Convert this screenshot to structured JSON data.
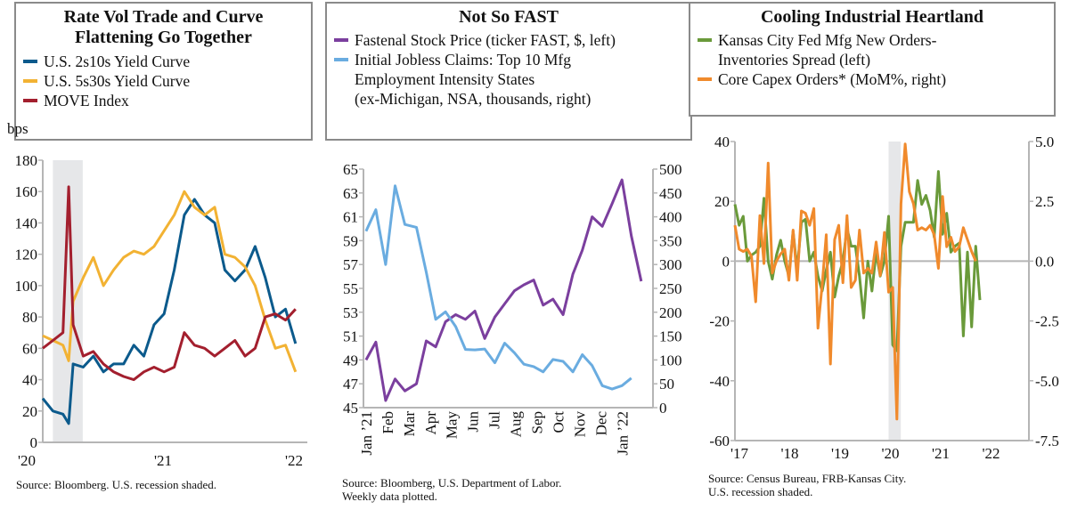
{
  "charts_text": [
    {
      "title_line1": "Rate Vol Trade and Curve",
      "title_line2": "Flattening Go Together",
      "unit": "bps",
      "source": "Source: Bloomberg. U.S. recession shaded."
    },
    {
      "title_line1": "Not So FAST",
      "source_line1": "Source: Bloomberg, U.S. Department of Labor.",
      "source_line2": "Weekly data plotted."
    },
    {
      "title_line1": "Cooling Industrial Heartland",
      "source_line1": "Source: Census Bureau, FRB-Kansas City.",
      "source_line2": "U.S. recession shaded."
    }
  ],
  "chart_data": [
    {
      "type": "line",
      "title": "Rate Vol Trade and Curve Flattening Go Together",
      "ylabel": "bps",
      "ylim": [
        0,
        180
      ],
      "yticks": [
        0,
        20,
        40,
        60,
        80,
        100,
        120,
        140,
        160,
        180
      ],
      "xticks": [
        "'20",
        "'21",
        "'22"
      ],
      "shaded": {
        "label": "U.S. recession",
        "from": "2020-02-01",
        "to": "2020-04-30",
        "color": "#e6e7e9"
      },
      "legend": "top-left",
      "grid": false,
      "x": [
        "2020-01-01",
        "2020-02-01",
        "2020-03-01",
        "2020-03-18",
        "2020-04-01",
        "2020-05-01",
        "2020-06-01",
        "2020-07-01",
        "2020-08-01",
        "2020-09-01",
        "2020-10-01",
        "2020-11-01",
        "2020-12-01",
        "2021-01-01",
        "2021-02-01",
        "2021-03-01",
        "2021-04-01",
        "2021-05-01",
        "2021-06-01",
        "2021-07-01",
        "2021-08-01",
        "2021-09-01",
        "2021-10-01",
        "2021-11-01",
        "2021-12-01",
        "2022-01-01",
        "2022-02-01"
      ],
      "series": [
        {
          "name": "U.S. 2s10s Yield Curve",
          "color": "#0b5a8c",
          "values": [
            28,
            20,
            18,
            12,
            50,
            48,
            55,
            45,
            50,
            50,
            62,
            55,
            75,
            82,
            110,
            145,
            155,
            145,
            140,
            110,
            103,
            110,
            125,
            105,
            80,
            85,
            63
          ]
        },
        {
          "name": "U.S. 5s30s Yield Curve",
          "color": "#f2b233",
          "values": [
            68,
            65,
            62,
            52,
            90,
            105,
            118,
            100,
            110,
            118,
            122,
            120,
            125,
            135,
            145,
            160,
            150,
            145,
            150,
            120,
            118,
            112,
            100,
            78,
            60,
            62,
            45
          ]
        },
        {
          "name": "MOVE Index",
          "color": "#a31f2e",
          "values": [
            60,
            65,
            70,
            163,
            75,
            55,
            58,
            50,
            45,
            42,
            40,
            45,
            48,
            45,
            48,
            70,
            62,
            60,
            55,
            60,
            65,
            55,
            60,
            80,
            82,
            78,
            85
          ]
        }
      ]
    },
    {
      "type": "line",
      "title": "Not So FAST",
      "ylim": [
        45,
        65
      ],
      "yticks": [
        45,
        47,
        49,
        51,
        53,
        55,
        57,
        59,
        61,
        63,
        65
      ],
      "y2lim": [
        0,
        500
      ],
      "y2ticks": [
        0,
        50,
        100,
        150,
        200,
        250,
        300,
        350,
        400,
        450,
        500
      ],
      "xticks": [
        [
          "2021-01-01",
          "Jan ’21"
        ],
        [
          "2021-02-01",
          "Feb"
        ],
        [
          "2021-03-01",
          "Mar"
        ],
        [
          "2021-04-01",
          "Apr"
        ],
        [
          "2021-05-01",
          "May"
        ],
        [
          "2021-06-01",
          "Jun"
        ],
        [
          "2021-07-01",
          "Jul"
        ],
        [
          "2021-08-01",
          "Aug"
        ],
        [
          "2021-09-01",
          "Sep"
        ],
        [
          "2021-10-01",
          "Oct"
        ],
        [
          "2021-11-01",
          "Nov"
        ],
        [
          "2021-12-01",
          "Dec"
        ],
        [
          "2022-01-01",
          "Jan ’22"
        ]
      ],
      "legend": "top",
      "grid": false,
      "x": [
        "2021-01-01",
        "2021-01-15",
        "2021-01-29",
        "2021-02-12",
        "2021-02-26",
        "2021-03-12",
        "2021-03-26",
        "2021-04-09",
        "2021-04-23",
        "2021-05-07",
        "2021-05-21",
        "2021-06-04",
        "2021-06-18",
        "2021-07-02",
        "2021-07-16",
        "2021-07-30",
        "2021-08-13",
        "2021-08-27",
        "2021-09-10",
        "2021-09-24",
        "2021-10-08",
        "2021-10-22",
        "2021-11-05",
        "2021-11-19",
        "2021-12-03",
        "2021-12-17",
        "2021-12-31",
        "2022-01-14",
        "2022-01-28"
      ],
      "series": [
        {
          "name": "Fastenal Stock Price (ticker FAST, $, left)",
          "legend_lines": [
            "Fastenal Stock Price (ticker FAST, $, left)"
          ],
          "axis": "left",
          "color": "#7b3f9e",
          "values": [
            49.0,
            50.5,
            45.6,
            47.4,
            46.4,
            47.0,
            50.6,
            50.1,
            52.2,
            52.8,
            52.4,
            53.1,
            50.8,
            52.6,
            53.7,
            54.8,
            55.3,
            55.7,
            53.6,
            54.1,
            52.8,
            56.2,
            58.2,
            61.0,
            60.2,
            62.1,
            64.1,
            59.4,
            55.6
          ]
        },
        {
          "name": "Initial Jobless Claims: Top 10 Mfg Employment Intensity States (ex-Michigan, NSA, thousands, right)",
          "legend_lines": [
            "Initial Jobless Claims: Top 10 Mfg",
            "Employment Intensity States",
            "(ex-Michigan, NSA, thousands, right)"
          ],
          "axis": "right",
          "color": "#6aace0",
          "values": [
            370,
            415,
            300,
            465,
            384,
            378,
            284,
            185,
            201,
            170,
            122,
            121,
            123,
            94,
            135,
            115,
            91,
            86,
            75,
            101,
            97,
            75,
            111,
            88,
            46,
            39,
            46,
            62,
            null
          ]
        }
      ]
    },
    {
      "type": "line",
      "title": "Cooling Industrial Heartland",
      "ylim": [
        -60,
        40
      ],
      "yticks": [
        -60,
        -40,
        -20,
        0,
        20,
        40
      ],
      "y2lim": [
        -7.5,
        5.0
      ],
      "y2ticks": [
        "-7.5",
        "-5.0",
        "-2.5",
        "0.0",
        "2.5",
        "5.0"
      ],
      "xticks": [
        "'17",
        "'18",
        "'19",
        "'20",
        "'21",
        "'22"
      ],
      "shaded": {
        "label": "U.S. recession",
        "from": "2020-02-01",
        "to": "2020-04-30",
        "color": "#e6e7e9"
      },
      "legend": "top",
      "grid": false,
      "x": [
        "2017-01",
        "2017-02",
        "2017-03",
        "2017-04",
        "2017-05",
        "2017-06",
        "2017-07",
        "2017-08",
        "2017-09",
        "2017-10",
        "2017-11",
        "2017-12",
        "2018-01",
        "2018-02",
        "2018-03",
        "2018-04",
        "2018-05",
        "2018-06",
        "2018-07",
        "2018-08",
        "2018-09",
        "2018-10",
        "2018-11",
        "2018-12",
        "2019-01",
        "2019-02",
        "2019-03",
        "2019-04",
        "2019-05",
        "2019-06",
        "2019-07",
        "2019-08",
        "2019-09",
        "2019-10",
        "2019-11",
        "2019-12",
        "2020-01",
        "2020-02",
        "2020-03",
        "2020-04",
        "2020-05",
        "2020-06",
        "2020-07",
        "2020-08",
        "2020-09",
        "2020-10",
        "2020-11",
        "2020-12",
        "2021-01",
        "2021-02",
        "2021-03",
        "2021-04",
        "2021-05",
        "2021-06",
        "2021-07",
        "2021-08",
        "2021-09",
        "2021-10",
        "2021-11",
        "2021-12"
      ],
      "series": [
        {
          "name": "Kansas City Fed Mfg New Orders-Inventories Spread (left)",
          "legend_lines": [
            "Kansas City Fed Mfg New Orders-",
            "Inventories Spread (left)"
          ],
          "axis": "left",
          "color": "#6a9a3a",
          "values": [
            19,
            12,
            15,
            0,
            2,
            3,
            5,
            21,
            0,
            -6,
            2,
            7,
            0,
            -5,
            10,
            -3,
            13,
            14,
            0,
            3,
            -5,
            -10,
            -3,
            3,
            -12,
            -5,
            0,
            11,
            5,
            5,
            -5,
            -19,
            0,
            -10,
            3,
            -5,
            0,
            15,
            -28,
            -30,
            5,
            13,
            13,
            13,
            27,
            19,
            22,
            17,
            8,
            30,
            9,
            16,
            3,
            5,
            6,
            -25,
            3,
            -22,
            5,
            -13
          ]
        },
        {
          "name": "Core Capex Orders* (MoM%, right)",
          "legend_lines": [
            "Core Capex Orders* (MoM%, right)"
          ],
          "axis": "right",
          "color": "#f08a2c",
          "values": [
            1.5,
            0.5,
            0.4,
            0.5,
            0.2,
            -1.7,
            1.9,
            -0.1,
            4.1,
            -0.5,
            0,
            0.3,
            0.5,
            -0.8,
            1.3,
            -0.8,
            2.1,
            2.0,
            1.5,
            2.2,
            -2.8,
            -1.0,
            1.1,
            -4.3,
            0.9,
            1.5,
            -0.9,
            1.9,
            -1.1,
            -0.8,
            1.3,
            -0.5,
            -0.3,
            -0.5,
            0.8,
            -0.6,
            1.2,
            -1.3,
            -1.1,
            -6.6,
            2.4,
            4.9,
            2.9,
            2.4,
            1.3,
            1.4,
            1.3,
            1.5,
            1.1,
            -0.3,
            2.7,
            0.6,
            1.0,
            0.4,
            0.6,
            1.4,
            0.9,
            0.4,
            0.0,
            null
          ]
        }
      ]
    }
  ]
}
